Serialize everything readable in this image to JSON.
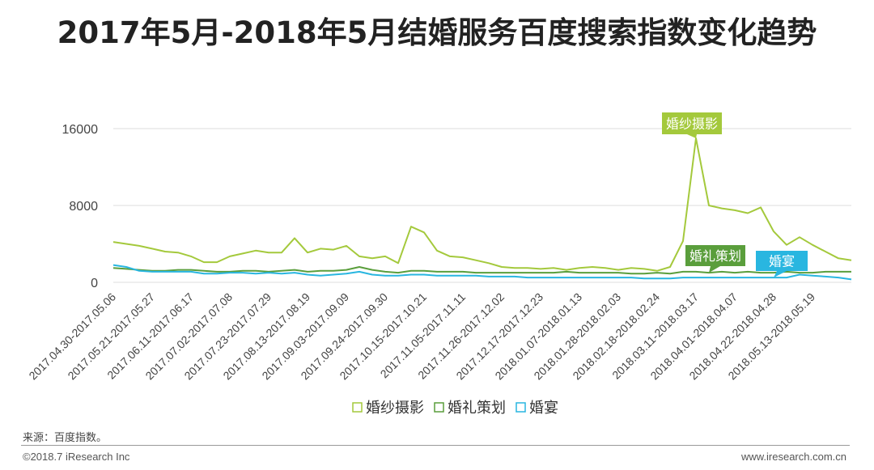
{
  "title": "2017年5月-2018年5月结婚服务百度搜索指数变化趋势",
  "footer": {
    "source": "来源：百度指数。",
    "copyright": "©2018.7 iResearch Inc",
    "website": "www.iresearch.com.cn"
  },
  "colors": {
    "hunshasheying": "#a4c93c",
    "hunlicehua": "#5a9e3c",
    "hunyan": "#29b6e0",
    "grid": "#dddddd",
    "axis": "#555555"
  },
  "chart_data": {
    "type": "line",
    "xlabel": "",
    "ylabel": "",
    "ylim": [
      0,
      16000
    ],
    "yticks": [
      0,
      8000,
      16000
    ],
    "ytick_labels": [
      "0",
      "8000",
      "16000"
    ],
    "grid": true,
    "legend_position": "bottom",
    "x_tick_labels": [
      "2017.04.30-2017.05.06",
      "2017.05.21-2017.05.27",
      "2017.06.11-2017.06.17",
      "2017.07.02-2017.07.08",
      "2017.07.23-2017.07.29",
      "2017.08.13-2017.08.19",
      "2017.09.03-2017.09.09",
      "2017.09.24-2017.09.30",
      "2017.10.15-2017.10.21",
      "2017.11.05-2017.11.11",
      "2017.11.26-2017.12.02",
      "2017.12.17-2017.12.23",
      "2018.01.07-2018.01.13",
      "2018.01.28-2018.02.03",
      "2018.02.18-2018.02.24",
      "2018.03.11-2018.03.17",
      "2018.04.01-2018.04.07",
      "2018.04.22-2018.04.28",
      "2018.05.13-2018.05.19"
    ],
    "tick_every": 3,
    "series": [
      {
        "name": "婚纱摄影",
        "callout": "婚纱摄影",
        "color_key": "hunshasheying",
        "values": [
          4200,
          4000,
          3800,
          3500,
          3200,
          3100,
          2700,
          2100,
          2100,
          2700,
          3000,
          3300,
          3100,
          3100,
          4600,
          3100,
          3500,
          3400,
          3800,
          2700,
          2500,
          2700,
          2000,
          5800,
          5200,
          3300,
          2700,
          2600,
          2300,
          2000,
          1600,
          1500,
          1500,
          1400,
          1500,
          1300,
          1500,
          1600,
          1500,
          1300,
          1500,
          1400,
          1200,
          1600,
          4300,
          15000,
          8000,
          7700,
          7500,
          7200,
          7800,
          5300,
          3900,
          4700,
          3900,
          3200,
          2500,
          2300
        ]
      },
      {
        "name": "婚礼策划",
        "callout": "婚礼策划",
        "color_key": "hunlicehua",
        "values": [
          1500,
          1400,
          1300,
          1200,
          1200,
          1300,
          1300,
          1200,
          1100,
          1100,
          1200,
          1200,
          1100,
          1200,
          1300,
          1100,
          1200,
          1200,
          1300,
          1600,
          1300,
          1100,
          1000,
          1200,
          1200,
          1100,
          1100,
          1100,
          1000,
          1000,
          1000,
          1000,
          1000,
          1000,
          1000,
          1100,
          1000,
          1000,
          1000,
          1000,
          900,
          900,
          1000,
          900,
          1100,
          1100,
          1000,
          1100,
          1000,
          1100,
          1000,
          1000,
          1100,
          1000,
          1000,
          1100,
          1100,
          1100
        ]
      },
      {
        "name": "婚宴",
        "callout": "婚宴",
        "color_key": "hunyan",
        "values": [
          1800,
          1600,
          1200,
          1100,
          1100,
          1100,
          1100,
          900,
          900,
          1000,
          1000,
          900,
          1000,
          900,
          1000,
          800,
          700,
          800,
          900,
          1100,
          800,
          700,
          700,
          800,
          800,
          700,
          700,
          700,
          700,
          600,
          600,
          600,
          500,
          500,
          500,
          500,
          500,
          500,
          500,
          500,
          500,
          400,
          400,
          400,
          500,
          500,
          500,
          500,
          500,
          500,
          500,
          500,
          500,
          800,
          700,
          600,
          500,
          300
        ]
      }
    ]
  }
}
